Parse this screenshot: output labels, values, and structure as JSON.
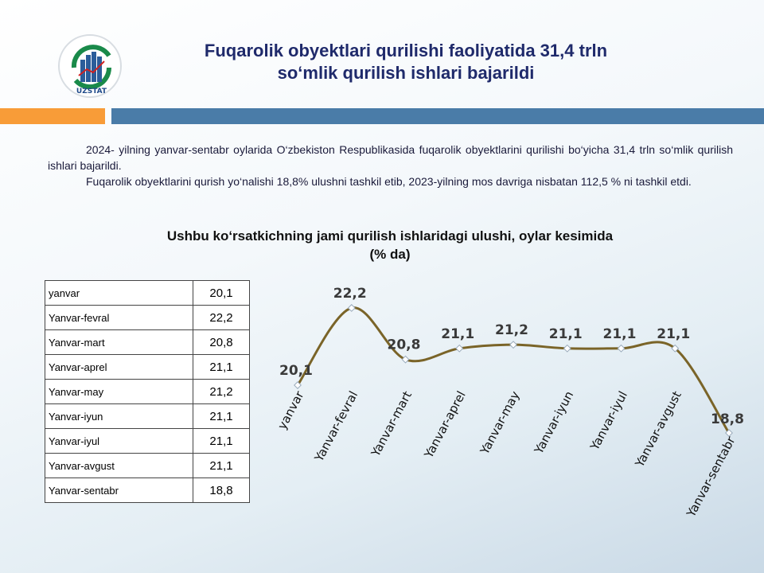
{
  "header": {
    "title_line1": "Fuqarolik obyektlari qurilishi faoliyatida 31,4 trln",
    "title_line2": "so‘mlik qurilish ishlari bajarildi",
    "logo_text": "UZSTAT"
  },
  "colors": {
    "title": "#1f2a6b",
    "orange": "#f89c38",
    "blue": "#4a7ca8",
    "line": "#7a6428"
  },
  "body": {
    "p1": "2024- yilning yanvar-sentabr oylarida O‘zbekiston Respublikasida fuqarolik obyektlarini qurilishi bo‘yicha 31,4 trln so‘mlik qurilish ishlari bajarildi.",
    "p2": "Fuqarolik obyektlarini qurish yo‘nalishi 18,8% ulushni tashkil etib, 2023-yilning mos davriga nisbatan 112,5 % ni tashkil etdi."
  },
  "table": [
    [
      "yanvar",
      "20,1"
    ],
    [
      "Yanvar-fevral",
      "22,2"
    ],
    [
      "Yanvar-mart",
      "20,8"
    ],
    [
      "Yanvar-aprel",
      "21,1"
    ],
    [
      "Yanvar-may",
      "21,2"
    ],
    [
      "Yanvar-iyun",
      "21,1"
    ],
    [
      "Yanvar-iyul",
      "21,1"
    ],
    [
      "Yanvar-avgust",
      "21,1"
    ],
    [
      "Yanvar-sentabr",
      "18,8"
    ]
  ],
  "chart_data": {
    "type": "line",
    "title": "Ushbu ko‘rsatkichning jami qurilish ishlaridagi ulushi, oylar kesimida",
    "subtitle": "(% da)",
    "categories": [
      "yanvar",
      "Yanvar-fevral",
      "Yanvar-mart",
      "Yanvar-aprel",
      "Yanvar-may",
      "Yanvar-iyun",
      "Yanvar-iyul",
      "Yanvar-avgust",
      "Yanvar-sentabr"
    ],
    "values": [
      20.1,
      22.2,
      20.8,
      21.1,
      21.2,
      21.1,
      21.1,
      21.1,
      18.8
    ],
    "data_labels": [
      "20,1",
      "22,2",
      "20,8",
      "21,1",
      "21,2",
      "21,1",
      "21,1",
      "21,1",
      "18,8"
    ],
    "smooth": true,
    "grid": false,
    "legend": "none"
  }
}
